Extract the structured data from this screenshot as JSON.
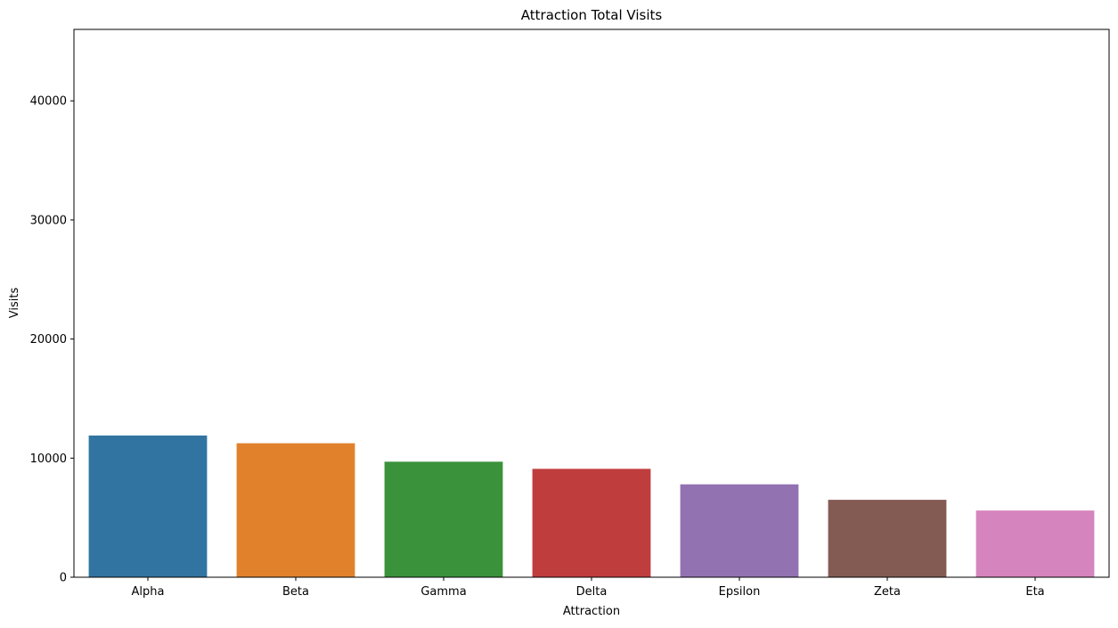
{
  "chart_data": {
    "type": "bar",
    "title": "Attraction Total Visits",
    "xlabel": "Attraction",
    "ylabel": "Visits",
    "categories": [
      "Alpha",
      "Beta",
      "Gamma",
      "Delta",
      "Epsilon",
      "Zeta",
      "Eta"
    ],
    "values": [
      11900,
      11250,
      9700,
      9100,
      7800,
      6500,
      5600
    ],
    "colors": [
      "#3274a1",
      "#e1812c",
      "#3a923a",
      "#c03d3e",
      "#9372b2",
      "#845b53",
      "#d684bd"
    ],
    "ylim": [
      0,
      46000
    ],
    "yticks": [
      0,
      10000,
      20000,
      30000,
      40000
    ],
    "ytick_labels": [
      "0",
      "10000",
      "20000",
      "30000",
      "40000"
    ],
    "grid": false,
    "legend": "none"
  }
}
